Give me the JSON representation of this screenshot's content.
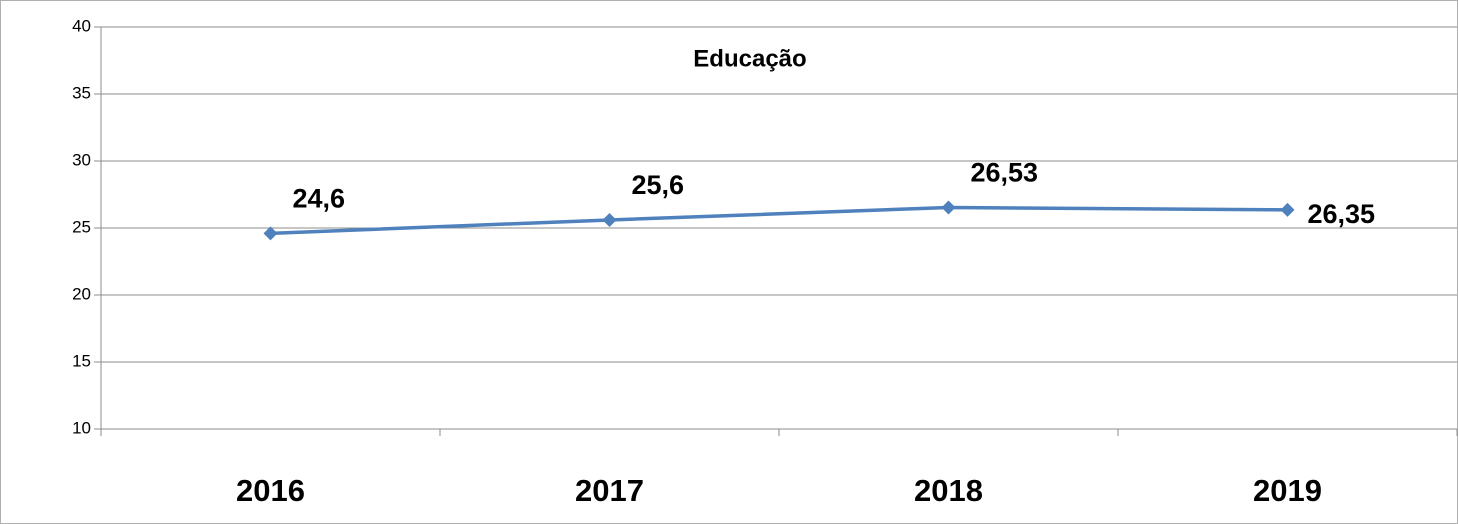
{
  "chart_data": {
    "type": "line",
    "title": "Educação",
    "categories": [
      "2016",
      "2017",
      "2018",
      "2019"
    ],
    "series": [
      {
        "name": "Educação",
        "color": "#4f81bd",
        "values": [
          24.6,
          25.6,
          26.53,
          26.35
        ],
        "value_labels": [
          "24,6",
          "25,6",
          "26,53",
          "26,35"
        ]
      }
    ],
    "ylim": [
      10,
      40
    ],
    "yticks": [
      10,
      15,
      20,
      25,
      30,
      35,
      40
    ],
    "grid": true
  }
}
